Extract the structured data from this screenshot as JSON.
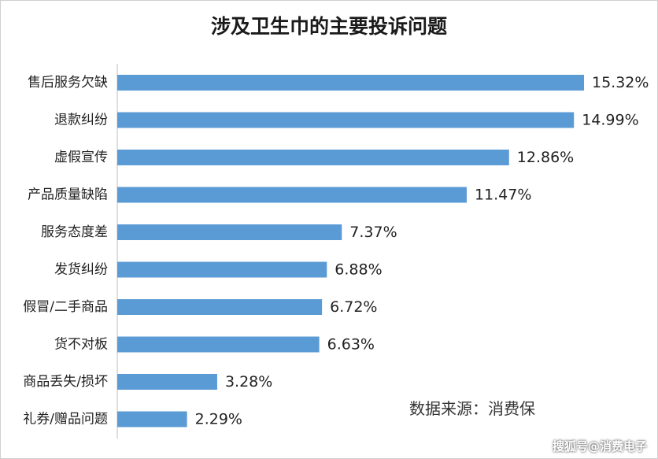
{
  "chart_data": {
    "type": "bar",
    "orientation": "horizontal",
    "title": "涉及卫生巾的主要投诉问题",
    "categories": [
      "售后服务欠缺",
      "退款纠纷",
      "虚假宣传",
      "产品质量缺陷",
      "服务态度差",
      "发货纠纷",
      "假冒/二手商品",
      "货不对板",
      "商品丢失/损坏",
      "礼券/赠品问题"
    ],
    "values": [
      15.32,
      14.99,
      12.86,
      11.47,
      7.37,
      6.88,
      6.72,
      6.63,
      3.28,
      2.29
    ],
    "value_labels": [
      "15.32%",
      "14.99%",
      "12.86%",
      "11.47%",
      "7.37%",
      "6.88%",
      "6.72%",
      "6.63%",
      "3.28%",
      "2.29%"
    ],
    "unit": "%",
    "bar_color": "#5b9bd5",
    "grid": false,
    "legend": "none"
  },
  "source_note": "数据来源：消费保",
  "watermark": "搜狐号@消费电子"
}
